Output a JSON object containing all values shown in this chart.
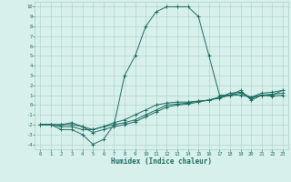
{
  "xlabel": "Humidex (Indice chaleur)",
  "bg_color": "#d8f0ec",
  "grid_color": "#aacec8",
  "line_color": "#1a6b60",
  "xlim": [
    -0.5,
    23.5
  ],
  "ylim": [
    -4.5,
    10.5
  ],
  "xticks": [
    0,
    1,
    2,
    3,
    4,
    5,
    6,
    7,
    8,
    9,
    10,
    11,
    12,
    13,
    14,
    15,
    16,
    17,
    18,
    19,
    20,
    21,
    22,
    23
  ],
  "yticks": [
    -4,
    -3,
    -2,
    -1,
    0,
    1,
    2,
    3,
    4,
    5,
    6,
    7,
    8,
    9,
    10
  ],
  "series": {
    "main": {
      "x": [
        0,
        1,
        2,
        3,
        4,
        5,
        6,
        7,
        8,
        9,
        10,
        11,
        12,
        13,
        14,
        15,
        16,
        17,
        18,
        19,
        20,
        21,
        22,
        23
      ],
      "y": [
        -2,
        -2,
        -2.5,
        -2.5,
        -3,
        -4,
        -3.5,
        -2,
        3,
        5,
        8,
        9.5,
        10,
        10,
        10,
        9,
        5,
        1,
        1,
        1.5,
        0.5,
        1,
        1,
        1.5
      ]
    },
    "line2": {
      "x": [
        0,
        1,
        2,
        3,
        4,
        5,
        6,
        7,
        8,
        9,
        10,
        11,
        12,
        13,
        14,
        15,
        16,
        17,
        18,
        19,
        20,
        21,
        22,
        23
      ],
      "y": [
        -2,
        -2,
        -2.2,
        -2.2,
        -2.5,
        -2.5,
        -2.2,
        -1.8,
        -1.5,
        -1.0,
        -0.5,
        0,
        0.2,
        0.3,
        0.3,
        0.4,
        0.5,
        0.7,
        1,
        1.2,
        0.8,
        1.2,
        1.3,
        1.5
      ]
    },
    "line3": {
      "x": [
        0,
        1,
        2,
        3,
        4,
        5,
        6,
        7,
        8,
        9,
        10,
        11,
        12,
        13,
        14,
        15,
        16,
        17,
        18,
        19,
        20,
        21,
        22,
        23
      ],
      "y": [
        -2,
        -2,
        -2.0,
        -2.0,
        -2.2,
        -2.8,
        -2.5,
        -2.2,
        -2,
        -1.7,
        -1.2,
        -0.7,
        -0.2,
        0,
        0.1,
        0.3,
        0.5,
        0.8,
        1.0,
        1.0,
        0.8,
        1.0,
        1.1,
        1.2
      ]
    },
    "line4": {
      "x": [
        0,
        1,
        2,
        3,
        4,
        5,
        6,
        7,
        8,
        9,
        10,
        11,
        12,
        13,
        14,
        15,
        16,
        17,
        18,
        19,
        20,
        21,
        22,
        23
      ],
      "y": [
        -2,
        -2,
        -2.0,
        -1.8,
        -2.2,
        -2.5,
        -2.2,
        -2.0,
        -1.8,
        -1.5,
        -1.0,
        -0.5,
        0,
        0.1,
        0.2,
        0.4,
        0.5,
        0.8,
        1.2,
        1.3,
        0.7,
        1.0,
        0.9,
        1.0
      ]
    }
  }
}
